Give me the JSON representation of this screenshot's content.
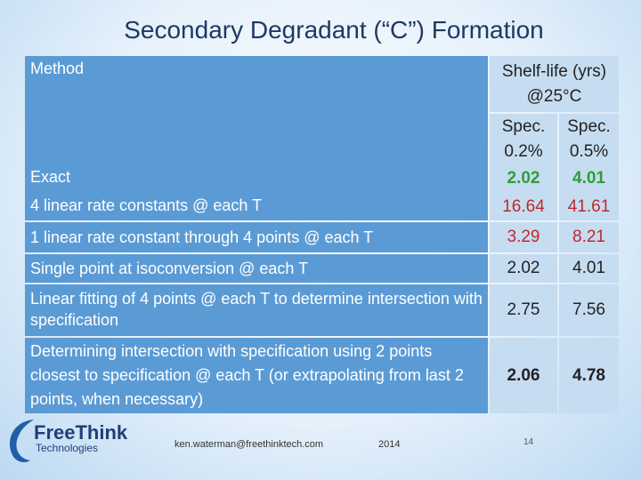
{
  "title": "Secondary Degradant (“C”) Formation",
  "table": {
    "header": {
      "method": "Method",
      "shelf_life": "Shelf-life (yrs) @25°C",
      "spec_columns": [
        "Spec. 0.2%",
        "Spec. 0.5%"
      ]
    },
    "rows": [
      {
        "method": "Exact",
        "values": [
          2.02,
          4.01
        ]
      },
      {
        "method": "4 linear rate constants @ each T",
        "values": [
          16.64,
          41.61
        ]
      },
      {
        "method": "1 linear rate constant through 4 points @ each T",
        "values": [
          3.29,
          8.21
        ]
      },
      {
        "method": "Single point at isoconversion @ each T",
        "values": [
          2.02,
          4.01
        ]
      },
      {
        "method": "Linear fitting of 4 points @ each T to determine intersection with specification",
        "values": [
          2.75,
          7.56
        ]
      },
      {
        "method": "Determining intersection with specification using 2 points closest to specification @ each T (or extrapolating from last 2 points, when necessary)",
        "values": [
          2.06,
          4.78
        ]
      }
    ]
  },
  "footer": {
    "logo_name": "FreeThink",
    "logo_sub": "Technologies",
    "email": "ken.waterman@freethinktech.com",
    "year": "2014",
    "page": "14"
  }
}
